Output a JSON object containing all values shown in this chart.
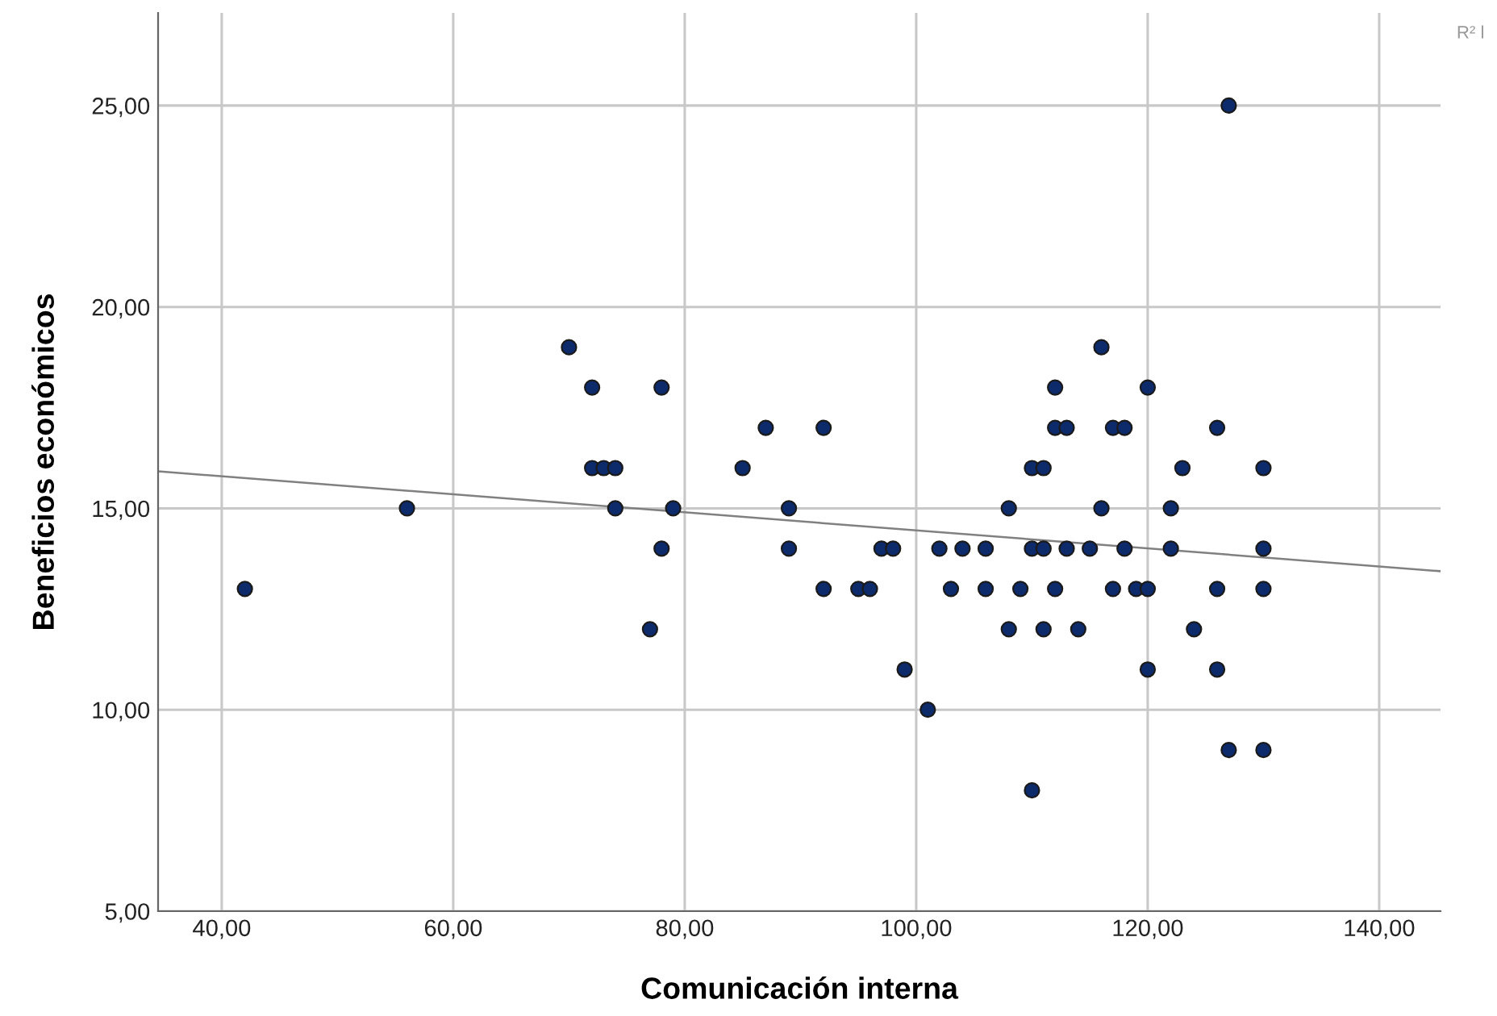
{
  "chart_data": {
    "type": "scatter",
    "xlabel": "Comunicación interna",
    "ylabel": "Beneficios económicos",
    "annotations": [
      "R² l"
    ],
    "xlim": [
      34.5,
      145.3
    ],
    "ylim": [
      5,
      27.3
    ],
    "xticks": [
      {
        "value": 40,
        "label": "40,00"
      },
      {
        "value": 60,
        "label": "60,00"
      },
      {
        "value": 80,
        "label": "80,00"
      },
      {
        "value": 100,
        "label": "100,00"
      },
      {
        "value": 120,
        "label": "120,00"
      },
      {
        "value": 140,
        "label": "140,00"
      }
    ],
    "yticks": [
      {
        "value": 5,
        "label": "5,00"
      },
      {
        "value": 10,
        "label": "10,00"
      },
      {
        "value": 15,
        "label": "15,00"
      },
      {
        "value": 20,
        "label": "20,00"
      },
      {
        "value": 25,
        "label": "25,00"
      }
    ],
    "grid": true,
    "series": [
      {
        "color": "#0d2a6b",
        "marker": "circle",
        "x": [
          42,
          56,
          70,
          72,
          78,
          87,
          72,
          73,
          74,
          85,
          74,
          79,
          89,
          78,
          89,
          77,
          92,
          97,
          98,
          92,
          95,
          96,
          99,
          101,
          102,
          104,
          106,
          103,
          106,
          109,
          112,
          108,
          108,
          111,
          114,
          110,
          111,
          110,
          111,
          113,
          115,
          118,
          122,
          130,
          112,
          120,
          112,
          113,
          117,
          118,
          126,
          116,
          116,
          122,
          123,
          130,
          117,
          119,
          120,
          126,
          130,
          124,
          120,
          126,
          127,
          130,
          110,
          127
        ],
        "values": [
          13,
          15,
          19,
          18,
          18,
          17,
          16,
          16,
          16,
          16,
          15,
          15,
          15,
          14,
          14,
          12,
          17,
          14,
          14,
          13,
          13,
          13,
          11,
          10,
          14,
          14,
          14,
          13,
          13,
          13,
          13,
          15,
          12,
          12,
          12,
          16,
          16,
          14,
          14,
          14,
          14,
          14,
          14,
          14,
          18,
          18,
          17,
          17,
          17,
          17,
          17,
          19,
          15,
          15,
          16,
          16,
          13,
          13,
          13,
          13,
          13,
          12,
          11,
          11,
          9,
          9,
          8,
          25
        ]
      },
      {
        "type": "line",
        "color": "#808080",
        "x": [
          34.5,
          145.3
        ],
        "values": [
          15.92,
          13.44
        ]
      }
    ]
  }
}
